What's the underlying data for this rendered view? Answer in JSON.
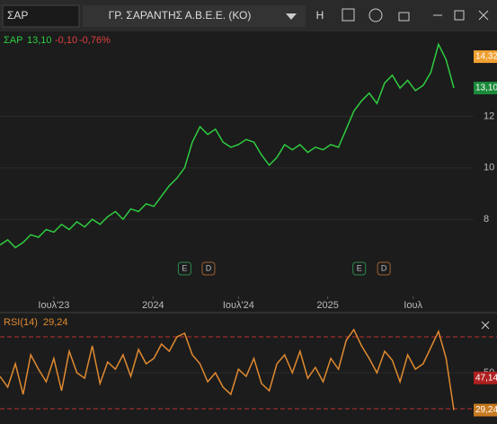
{
  "toolbar": {
    "symbol": "ΣΑΡ",
    "company": "ΓΡ. ΣΑΡΑΝΤΗΣ Α.Β.Ε.Ε. (ΚΟ)",
    "button": "H"
  },
  "legend": {
    "symbol": "ΣΑΡ",
    "price": "13,10",
    "change": "-0,10",
    "change_pct": "-0,76%"
  },
  "price_chart": {
    "type": "line",
    "color": "#2ecc40",
    "values": [
      7.0,
      7.2,
      6.9,
      7.1,
      7.4,
      7.3,
      7.6,
      7.5,
      7.8,
      7.6,
      7.9,
      7.7,
      8.0,
      7.8,
      8.1,
      8.3,
      8.0,
      8.4,
      8.3,
      8.6,
      8.5,
      8.9,
      9.3,
      9.6,
      10.0,
      11.0,
      11.6,
      11.3,
      11.5,
      11.0,
      10.8,
      10.9,
      11.1,
      11.0,
      10.5,
      10.1,
      10.4,
      10.9,
      10.7,
      10.9,
      10.6,
      10.8,
      10.7,
      10.9,
      10.8,
      11.5,
      12.2,
      12.6,
      12.9,
      12.5,
      13.3,
      13.6,
      13.1,
      13.4,
      13.0,
      13.2,
      13.7,
      14.8,
      14.2,
      13.1
    ],
    "ylim": [
      5,
      15.3
    ],
    "yticks": [
      8,
      10,
      12
    ],
    "tags": [
      {
        "value": 14.32,
        "label": "14,32",
        "color": "#f0a030"
      },
      {
        "value": 13.1,
        "label": "13,10",
        "color": "#1a8a3a"
      }
    ],
    "xticks": [
      {
        "value": 7,
        "label": "Ιουλ'23"
      },
      {
        "value": 19.9,
        "label": "2024"
      },
      {
        "value": 31,
        "label": "Ιουλ'24"
      },
      {
        "value": 42.6,
        "label": "2025"
      },
      {
        "value": 53.7,
        "label": "Ιουλ"
      }
    ],
    "events": [
      {
        "index": 24,
        "label": "E"
      },
      {
        "index": 27.1,
        "label": "D"
      },
      {
        "index": 46.7,
        "label": "E"
      },
      {
        "index": 49.9,
        "label": "D"
      }
    ]
  },
  "rsi": {
    "type": "line",
    "title": "RSI(14)",
    "current": "29,24",
    "color": "#e08a30",
    "values": [
      48,
      42,
      55,
      38,
      60,
      52,
      45,
      58,
      40,
      62,
      50,
      47,
      65,
      44,
      56,
      52,
      60,
      48,
      63,
      55,
      58,
      66,
      62,
      70,
      72,
      60,
      55,
      45,
      50,
      42,
      38,
      52,
      48,
      58,
      44,
      40,
      55,
      60,
      50,
      62,
      47,
      53,
      45,
      58,
      52,
      68,
      74,
      65,
      58,
      50,
      62,
      57,
      45,
      60,
      52,
      55,
      64,
      73,
      58,
      29.24
    ],
    "ylim": [
      25,
      80
    ],
    "yticks": [
      50
    ],
    "levels": [
      70,
      30
    ],
    "tags": [
      {
        "value": 47.14,
        "label": "47,14",
        "color": "#b02020"
      },
      {
        "value": 29.24,
        "label": "29,24",
        "color": "#c87a20"
      }
    ]
  }
}
